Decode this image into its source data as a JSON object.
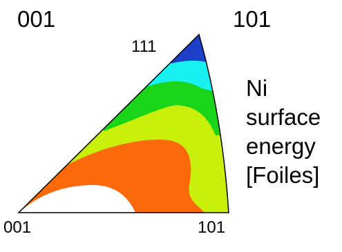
{
  "labels": {
    "top_left": "001",
    "top_right": "101",
    "apex": "111",
    "bottom_left": "001",
    "bottom_right": "101"
  },
  "caption": [
    "Ni",
    "surface",
    "energy",
    "[Foiles]"
  ],
  "colors": {
    "blue": "#1e3fc8",
    "cyan": "#19f0f0",
    "green": "#19d419",
    "yellow_green": "#c8f00a",
    "orange": "#fa6a0a",
    "white": "#ffffff",
    "outline": "#000000"
  }
}
